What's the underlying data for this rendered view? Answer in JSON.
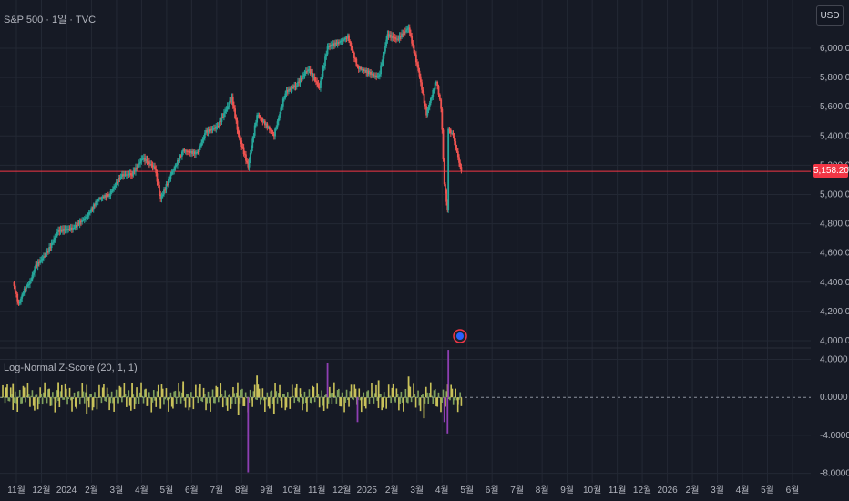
{
  "header": {
    "symbol_label": "S&P 500 · 1일 · TVC",
    "currency_button": "USD"
  },
  "indicator": {
    "label": "Log-Normal Z-Score (20, 1, 1)"
  },
  "colors": {
    "background": "#161a25",
    "grid": "#232834",
    "up": "#26a69a",
    "down": "#ef5350",
    "price_line": "#f23645",
    "hist_yellow": "#c9c25a",
    "hist_green": "#7fa05c",
    "hist_purple": "#8e3fb3",
    "zero_line": "#8a8f9c"
  },
  "chart_data": [
    {
      "type": "candlestick",
      "title": "S&P 500 · 1일 · TVC",
      "y_axis_ticks": [
        "6,000.0000",
        "5,800.0000",
        "5,600.0000",
        "5,400.0000",
        "5,200.0000",
        "5,000.0000",
        "4,800.0000",
        "4,600.0000",
        "4,400.0000",
        "4,200.0000",
        "4,000.0000"
      ],
      "ylim": [
        3950,
        6330
      ],
      "x_tick_labels": [
        "11월",
        "12월",
        "2024",
        "2월",
        "3월",
        "4월",
        "5월",
        "6월",
        "7월",
        "8월",
        "9월",
        "10월",
        "11월",
        "12월",
        "2025",
        "2월",
        "3월",
        "4월",
        "5월",
        "6월",
        "7월",
        "8월",
        "9월",
        "10월",
        "11월",
        "12월",
        "2026",
        "2월",
        "3월",
        "4월",
        "5월",
        "6월"
      ],
      "last_price": "5,158.2000",
      "last_price_value": 5158.2,
      "series": [
        {
          "name": "S&P 500",
          "x": [
            "2023-10-20",
            "2023-10-27",
            "2023-11-03",
            "2023-11-10",
            "2023-11-17",
            "2023-12-01",
            "2023-12-15",
            "2024-01-02",
            "2024-01-19",
            "2024-02-02",
            "2024-02-16",
            "2024-03-01",
            "2024-03-15",
            "2024-03-28",
            "2024-04-12",
            "2024-04-19",
            "2024-05-03",
            "2024-05-17",
            "2024-06-03",
            "2024-06-14",
            "2024-06-28",
            "2024-07-16",
            "2024-07-24",
            "2024-08-05",
            "2024-08-16",
            "2024-09-06",
            "2024-09-20",
            "2024-10-04",
            "2024-10-18",
            "2024-11-01",
            "2024-11-11",
            "2024-11-29",
            "2024-12-06",
            "2024-12-18",
            "2025-01-13",
            "2025-01-24",
            "2025-02-05",
            "2025-02-19",
            "2025-03-03",
            "2025-03-13",
            "2025-03-25",
            "2025-03-31",
            "2025-04-04",
            "2025-04-08",
            "2025-04-09",
            "2025-04-15",
            "2025-04-21",
            "2025-04-25"
          ],
          "values": [
            4400,
            4250,
            4350,
            4400,
            4510,
            4600,
            4750,
            4770,
            4850,
            4970,
            5000,
            5130,
            5140,
            5250,
            5180,
            4970,
            5150,
            5300,
            5280,
            5430,
            5460,
            5660,
            5410,
            5190,
            5550,
            5410,
            5700,
            5750,
            5860,
            5730,
            6010,
            6050,
            6080,
            5870,
            5800,
            6090,
            6060,
            6140,
            5850,
            5550,
            5780,
            5600,
            5080,
            4900,
            5450,
            5400,
            5250,
            5158.2
          ]
        }
      ]
    },
    {
      "type": "bar",
      "title": "Log-Normal Z-Score (20, 1, 1)",
      "y_axis_ticks": [
        "4.0000",
        "0.0000",
        "-4.0000",
        "-8.0000"
      ],
      "ylim": [
        -9,
        5.2
      ],
      "series": [
        {
          "name": "Log-Normal Z-Score",
          "x": [
            "2023-10-20",
            "2023-12-15",
            "2024-01-19",
            "2024-03-15",
            "2024-04-19",
            "2024-05-17",
            "2024-07-24",
            "2024-08-05",
            "2024-08-16",
            "2024-09-06",
            "2024-11-11",
            "2024-12-18",
            "2025-01-13",
            "2025-02-19",
            "2025-03-10",
            "2025-04-04",
            "2025-04-08",
            "2025-04-09",
            "2025-04-21"
          ],
          "values": [
            1.4,
            1.6,
            -1.8,
            1.5,
            -1.2,
            1.7,
            -1.9,
            -7.9,
            2.3,
            -1.8,
            3.6,
            -2.6,
            1.8,
            2.2,
            -2.2,
            -2.6,
            -3.8,
            5.0,
            -0.8
          ]
        }
      ]
    }
  ]
}
